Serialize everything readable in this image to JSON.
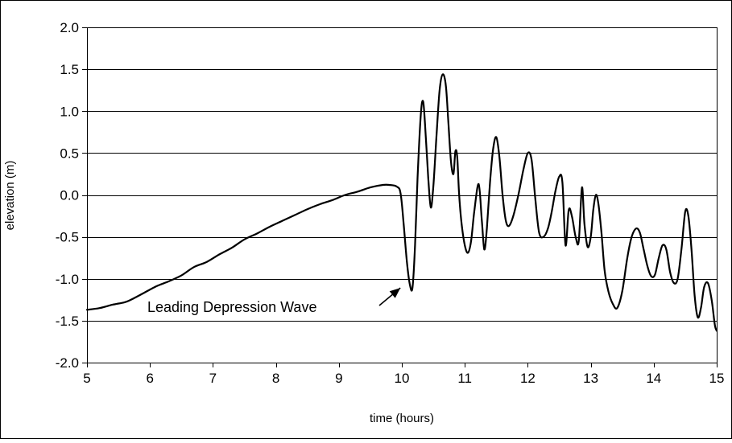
{
  "chart_data": {
    "type": "line",
    "xlabel": "time (hours)",
    "ylabel": "elevation (m)",
    "xlim": [
      5,
      15
    ],
    "ylim": [
      -2.0,
      2.0
    ],
    "grid": {
      "horizontal": true,
      "vertical": false
    },
    "legend": "none",
    "x_ticks": [
      5,
      6,
      7,
      8,
      9,
      10,
      11,
      12,
      13,
      14,
      15
    ],
    "x_tick_labels": [
      "5",
      "6",
      "7",
      "8",
      "9",
      "10",
      "11",
      "12",
      "13",
      "14",
      "15"
    ],
    "y_ticks": [
      2.0,
      1.5,
      1.0,
      0.5,
      0.0,
      -0.5,
      -1.0,
      -1.5,
      -2.0
    ],
    "y_tick_labels": [
      "2.0",
      "1.5",
      "1.0",
      "0.5",
      "0.0",
      "-0.5",
      "-1.0",
      "-1.5",
      "-2.0"
    ],
    "line_color": "#000000",
    "series": [
      {
        "x": [
          5.0,
          5.2,
          5.4,
          5.6,
          5.7,
          5.9,
          6.1,
          6.3,
          6.5,
          6.7,
          6.9,
          7.1,
          7.3,
          7.5,
          7.7,
          7.9,
          8.1,
          8.3,
          8.5,
          8.7,
          8.9,
          9.1,
          9.3,
          9.5,
          9.7,
          9.8,
          9.92,
          9.98,
          10.03,
          10.08,
          10.13,
          10.17,
          10.21,
          10.25,
          10.3,
          10.34,
          10.38,
          10.42,
          10.46,
          10.5,
          10.55,
          10.6,
          10.65,
          10.7,
          10.74,
          10.78,
          10.82,
          10.85,
          10.88,
          10.91,
          10.95,
          11.0,
          11.05,
          11.1,
          11.15,
          11.22,
          11.27,
          11.31,
          11.35,
          11.4,
          11.45,
          11.5,
          11.55,
          11.6,
          11.65,
          11.7,
          11.77,
          11.85,
          11.93,
          12.0,
          12.06,
          12.12,
          12.18,
          12.25,
          12.32,
          12.38,
          12.44,
          12.5,
          12.55,
          12.6,
          12.65,
          12.7,
          12.76,
          12.81,
          12.86,
          12.9,
          12.95,
          13.0,
          13.04,
          13.08,
          13.12,
          13.17,
          13.22,
          13.28,
          13.35,
          13.42,
          13.5,
          13.58,
          13.65,
          13.72,
          13.78,
          13.84,
          13.9,
          13.96,
          14.02,
          14.08,
          14.14,
          14.2,
          14.26,
          14.32,
          14.38,
          14.44,
          14.5,
          14.55,
          14.6,
          14.65,
          14.7,
          14.75,
          14.8,
          14.86,
          14.92,
          14.97,
          15.0
        ],
        "y": [
          -1.37,
          -1.35,
          -1.31,
          -1.28,
          -1.25,
          -1.17,
          -1.09,
          -1.03,
          -0.96,
          -0.86,
          -0.8,
          -0.71,
          -0.63,
          -0.53,
          -0.46,
          -0.38,
          -0.31,
          -0.24,
          -0.17,
          -0.11,
          -0.06,
          0.0,
          0.04,
          0.09,
          0.12,
          0.12,
          0.1,
          0.02,
          -0.35,
          -0.8,
          -1.08,
          -1.1,
          -0.6,
          0.2,
          0.95,
          1.11,
          0.7,
          0.2,
          -0.15,
          0.1,
          0.7,
          1.25,
          1.44,
          1.3,
          0.85,
          0.4,
          0.25,
          0.52,
          0.45,
          0.0,
          -0.35,
          -0.6,
          -0.69,
          -0.55,
          -0.2,
          0.13,
          -0.3,
          -0.65,
          -0.4,
          0.15,
          0.55,
          0.69,
          0.45,
          0.0,
          -0.3,
          -0.37,
          -0.25,
          0.0,
          0.3,
          0.5,
          0.42,
          -0.05,
          -0.45,
          -0.5,
          -0.4,
          -0.2,
          0.05,
          0.22,
          0.15,
          -0.6,
          -0.18,
          -0.25,
          -0.5,
          -0.55,
          0.09,
          -0.35,
          -0.62,
          -0.5,
          -0.18,
          0.0,
          -0.1,
          -0.45,
          -0.9,
          -1.15,
          -1.3,
          -1.35,
          -1.15,
          -0.75,
          -0.5,
          -0.4,
          -0.45,
          -0.65,
          -0.85,
          -0.97,
          -0.95,
          -0.75,
          -0.6,
          -0.65,
          -0.92,
          -1.05,
          -1.0,
          -0.65,
          -0.2,
          -0.25,
          -0.65,
          -1.2,
          -1.46,
          -1.35,
          -1.1,
          -1.05,
          -1.25,
          -1.55,
          -1.62
        ]
      }
    ],
    "annotations": [
      {
        "text": "Leading Depression Wave",
        "arrow_to": [
          10.13,
          -1.08
        ]
      }
    ]
  }
}
